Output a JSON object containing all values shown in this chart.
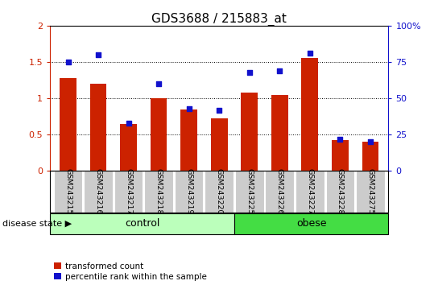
{
  "title": "GDS3688 / 215883_at",
  "categories": [
    "GSM243215",
    "GSM243216",
    "GSM243217",
    "GSM243218",
    "GSM243219",
    "GSM243220",
    "GSM243225",
    "GSM243226",
    "GSM243227",
    "GSM243228",
    "GSM243275"
  ],
  "bar_values": [
    1.28,
    1.2,
    0.65,
    1.0,
    0.85,
    0.72,
    1.08,
    1.05,
    1.55,
    0.43,
    0.4
  ],
  "dot_values": [
    75,
    80,
    33,
    60,
    43,
    42,
    68,
    69,
    81,
    22,
    20
  ],
  "ylim_left": [
    0,
    2
  ],
  "ylim_right": [
    0,
    100
  ],
  "yticks_left": [
    0,
    0.5,
    1.0,
    1.5,
    2.0
  ],
  "ytick_left_labels": [
    "0",
    "0.5",
    "1",
    "1.5",
    "2"
  ],
  "yticks_right": [
    0,
    25,
    50,
    75,
    100
  ],
  "ytick_right_labels": [
    "0",
    "25",
    "50",
    "75",
    "100%"
  ],
  "bar_color": "#cc2200",
  "dot_color": "#1111cc",
  "n_control": 6,
  "control_color": "#bbffbb",
  "obese_color": "#44dd44",
  "control_label": "control",
  "obese_label": "obese",
  "disease_state_label": "disease state",
  "legend_bar_label": "transformed count",
  "legend_dot_label": "percentile rank within the sample",
  "ticklabel_area_color": "#cccccc",
  "ticklabel_sep_color": "#ffffff"
}
